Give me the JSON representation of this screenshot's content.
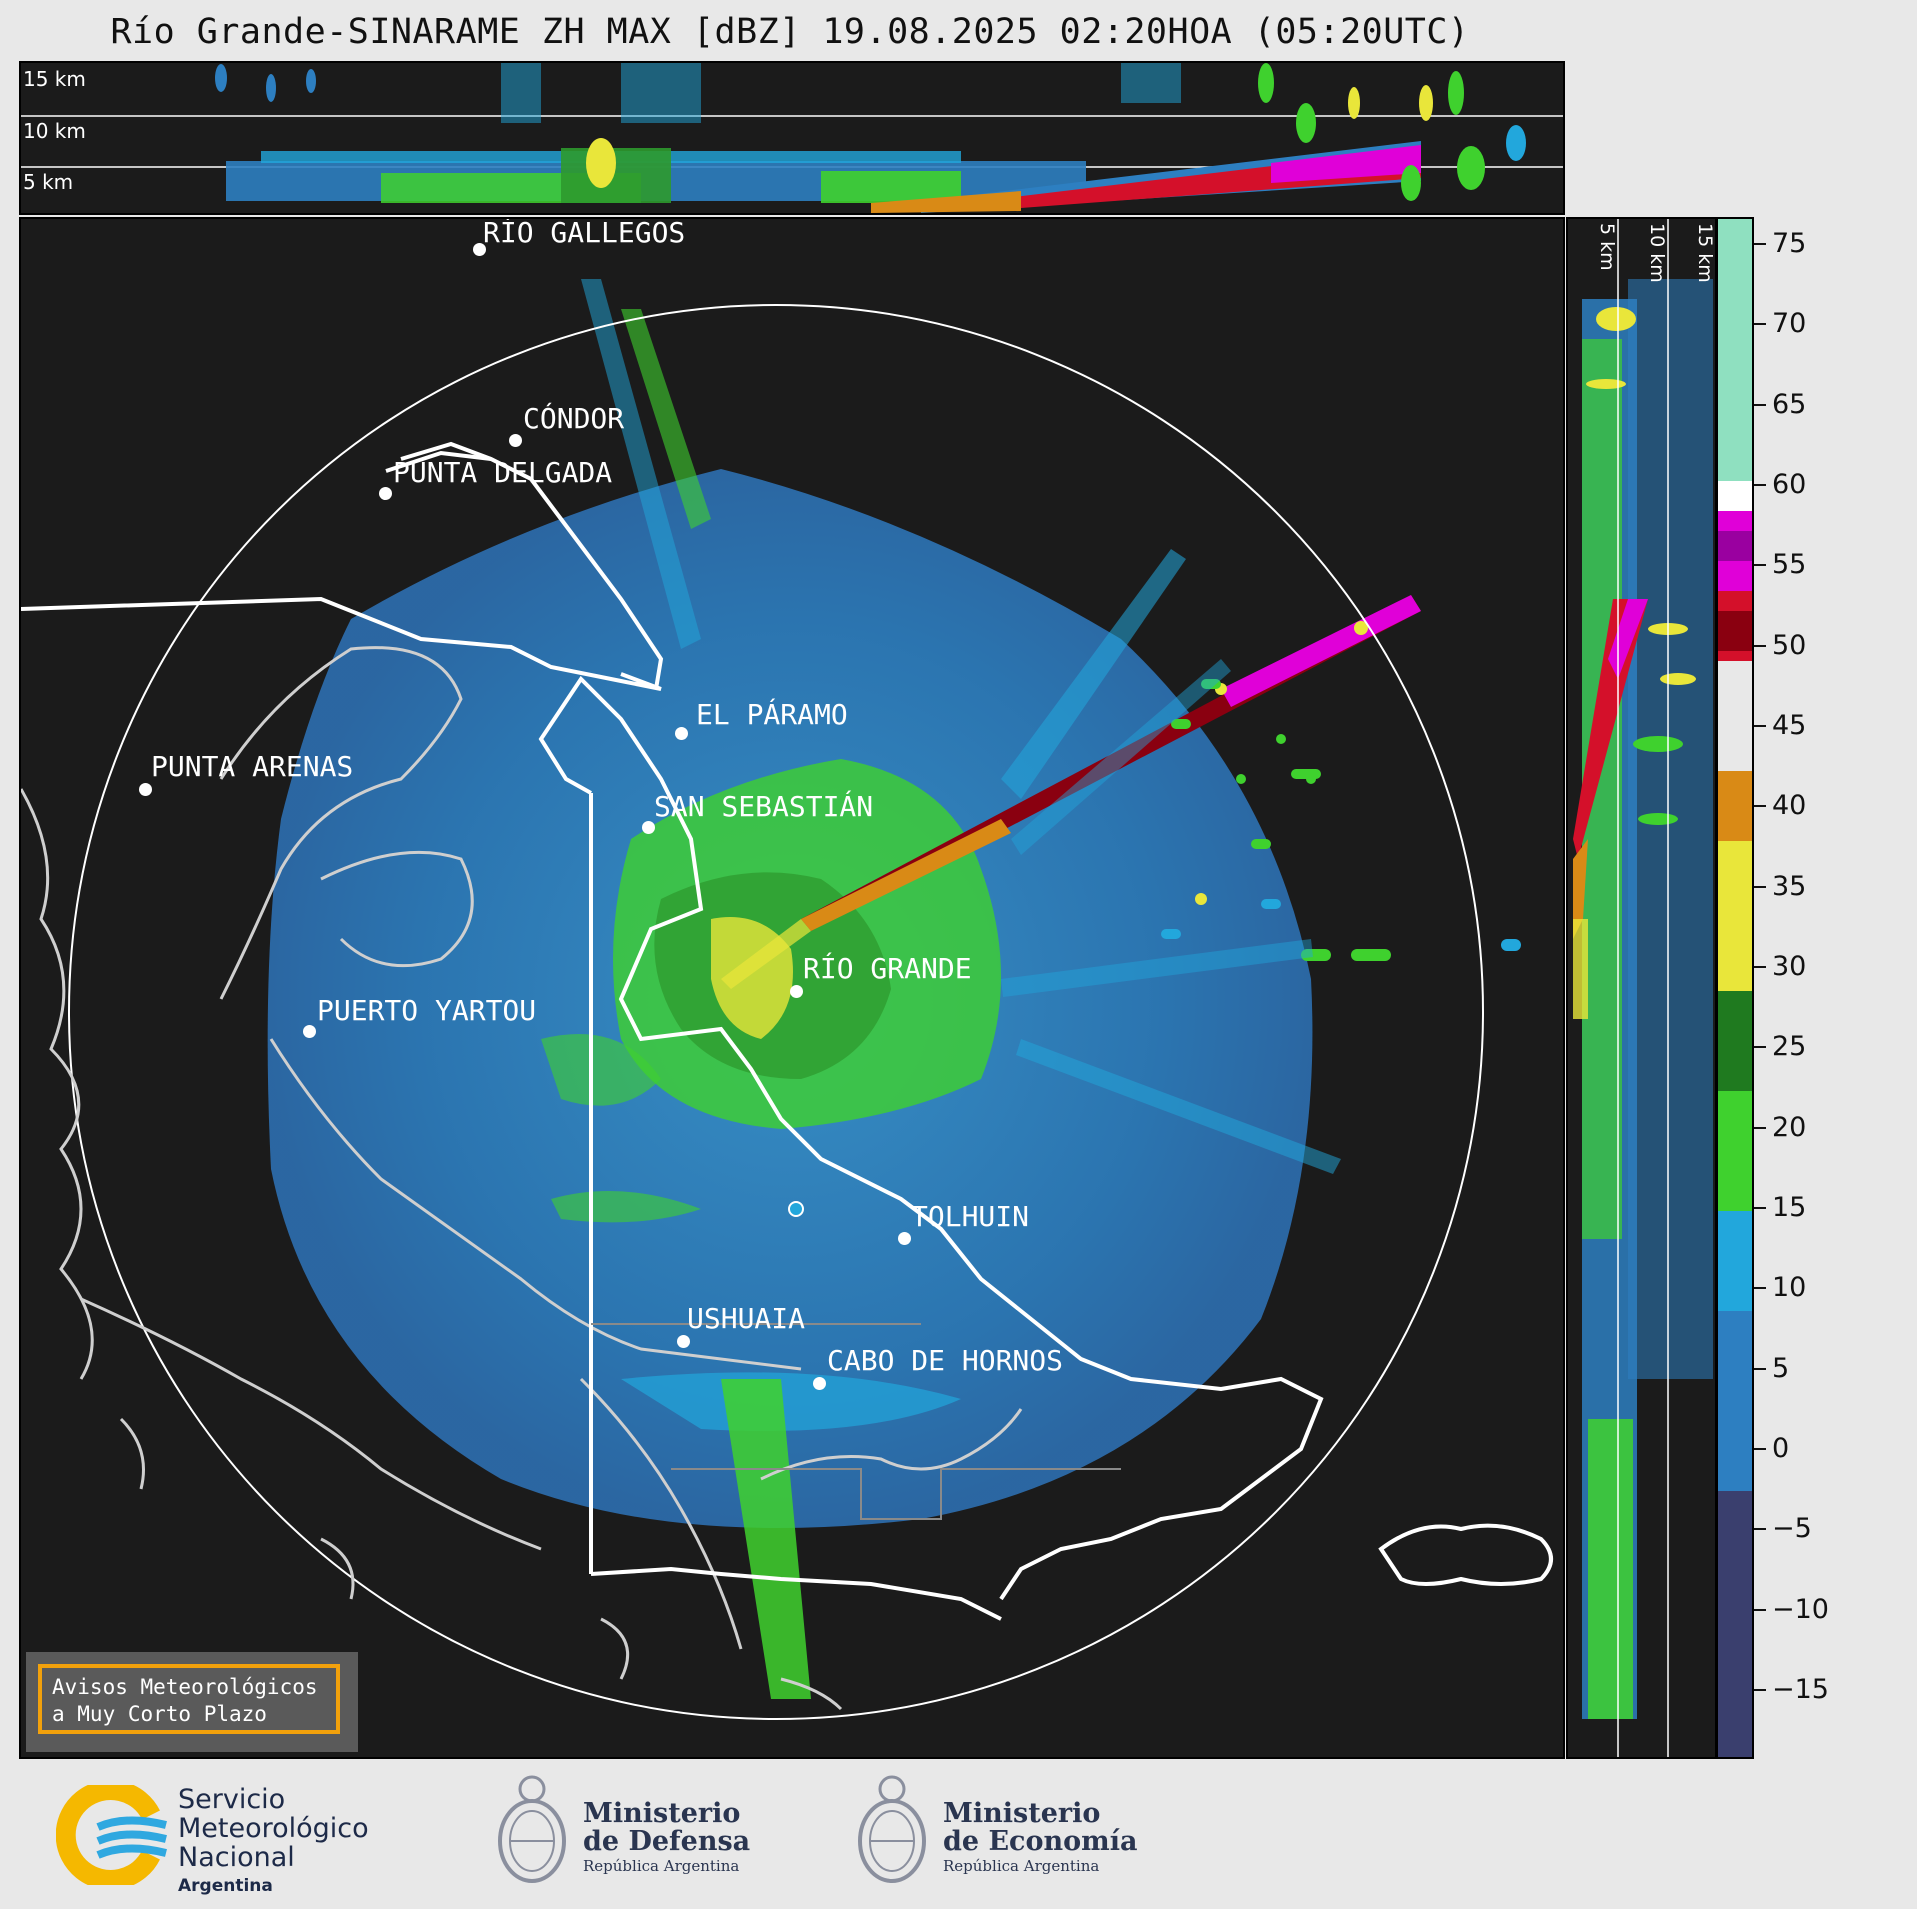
{
  "title": "Río Grande-SINARAME ZH MAX [dBZ] 19.08.2025 02:20HOA (05:20UTC)",
  "top_section": {
    "height_labels": [
      "15 km",
      "10 km",
      "5 km"
    ]
  },
  "side_section": {
    "height_labels": [
      "5 km",
      "10 km",
      "15 km"
    ]
  },
  "colorbar": {
    "unit": "dBZ",
    "ticks": [
      "75",
      "70",
      "65",
      "60",
      "55",
      "50",
      "45",
      "40",
      "35",
      "30",
      "25",
      "20",
      "15",
      "10",
      "5",
      "0",
      "−5",
      "−10",
      "−15"
    ],
    "colors": {
      "dark_blue": "#3a3f6e",
      "blue": "#2d7fc1",
      "cyan": "#22a7dc",
      "green": "#3fd12e",
      "dark_green": "#1f7a1f",
      "yellow": "#e9e63a",
      "orange": "#d98a16",
      "red": "#d4102a",
      "dark_red": "#8a0010",
      "magenta": "#e000d8",
      "purple": "#9a00a0",
      "white": "#ffffff",
      "mint": "#8fe0c0"
    }
  },
  "cities": [
    {
      "name": "RÍO GALLEGOS"
    },
    {
      "name": "CÓNDOR"
    },
    {
      "name": "PUNTA DELGADA"
    },
    {
      "name": "EL PÁRAMO"
    },
    {
      "name": "PUNTA ARENAS"
    },
    {
      "name": "SAN SEBASTIÁN"
    },
    {
      "name": "RÍO GRANDE"
    },
    {
      "name": "PUERTO YARTOU"
    },
    {
      "name": "TOLHUIN"
    },
    {
      "name": "USHUAIA"
    },
    {
      "name": "CABO DE HORNOS"
    }
  ],
  "warning_box": {
    "line1": "Avisos Meteorológicos",
    "line2": "a Muy Corto Plazo"
  },
  "logos": {
    "smn": {
      "line1": "Servicio",
      "line2": "Meteorológico",
      "line3": "Nacional",
      "line4": "Argentina",
      "icon": "smn-logo-icon"
    },
    "defensa": {
      "line1": "Ministerio",
      "line2": "de Defensa",
      "line3": "República Argentina",
      "icon": "argentina-coat-of-arms-icon"
    },
    "economia": {
      "line1": "Ministerio",
      "line2": "de Economía",
      "line3": "República Argentina",
      "icon": "argentina-coat-of-arms-icon"
    }
  }
}
